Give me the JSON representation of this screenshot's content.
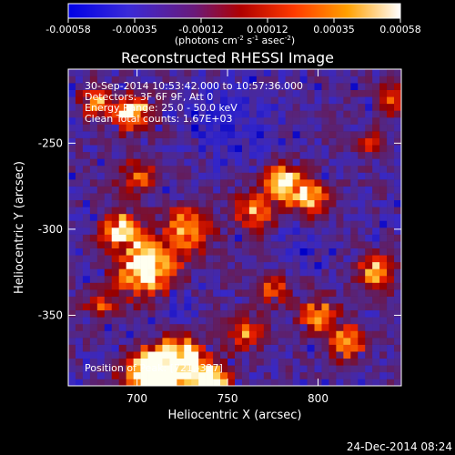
{
  "chart_data": {
    "type": "heatmap",
    "title": "Reconstructed RHESSI Image",
    "xlabel": "Heliocentric X (arcsec)",
    "ylabel": "Heliocentric Y (arcsec)",
    "xlim": [
      662,
      846
    ],
    "ylim": [
      -391,
      -207
    ],
    "x_ticks": [
      700,
      750,
      800
    ],
    "y_ticks": [
      -250,
      -300,
      -350
    ],
    "colorbar": {
      "range": [
        -0.00058,
        0.00058
      ],
      "ticks": [
        "-0.00058",
        "-0.00035",
        "-0.00012",
        "0.00012",
        "0.00035",
        "0.00058"
      ],
      "unit_parts": [
        "(photons cm",
        "-2",
        " s",
        "-1",
        " asec",
        "-2",
        ")"
      ],
      "colormap": [
        "#0000e6",
        "#5a2a9a",
        "#6a2060",
        "#a00000",
        "#ff3000",
        "#ff9000",
        "#ffffff"
      ]
    },
    "annotations": {
      "time": "30-Sep-2014 10:53:42.000 to 10:57:36.000",
      "detectors": "Detectors: 3F 6F 9F, Att 0",
      "energy": "Energy Range: 25.0 - 50.0 keV",
      "clean": "Clean     Total counts: 1.67E+03",
      "peak": "Position of Peak: [721,-327]"
    },
    "peak": [
      721,
      -327
    ],
    "grid": false
  },
  "footer": {
    "timestamp": "24-Dec-2014 08:24"
  }
}
